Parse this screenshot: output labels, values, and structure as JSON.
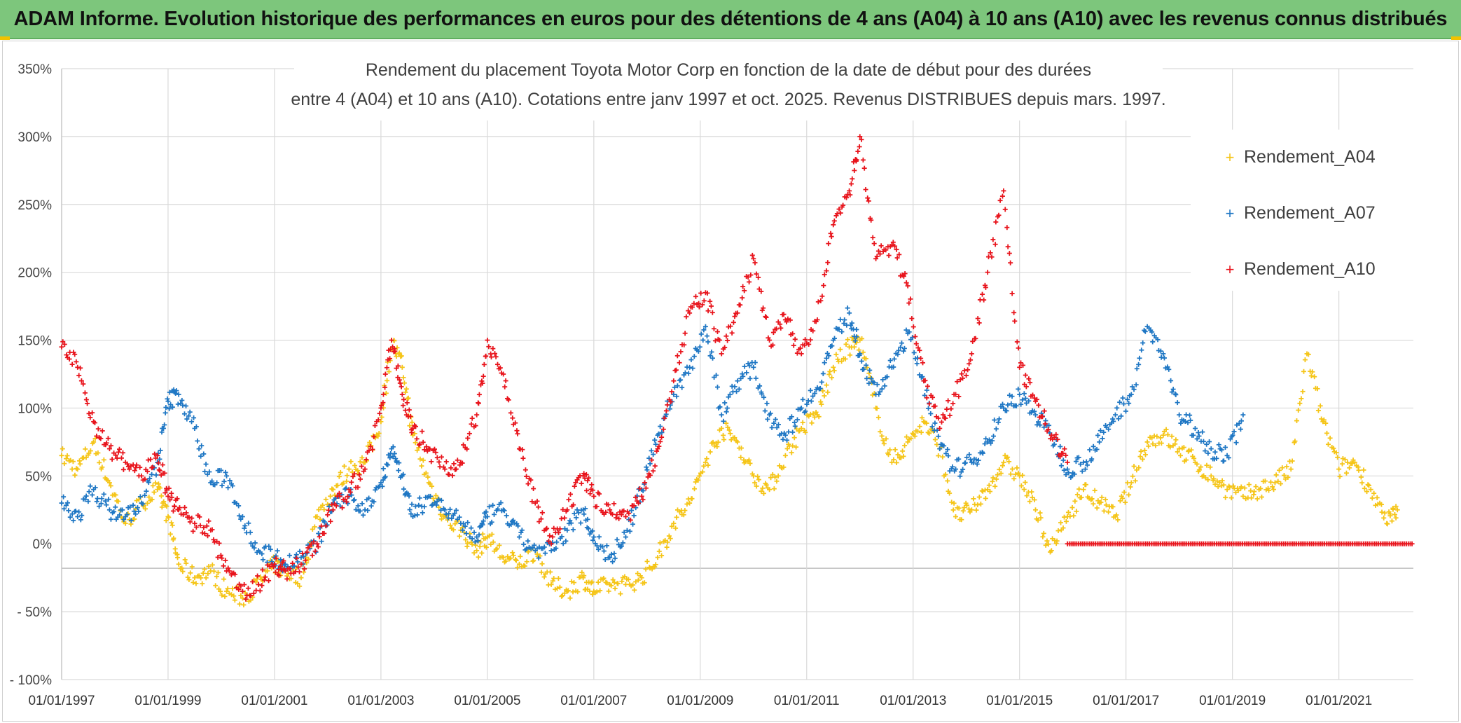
{
  "banner": {
    "text": "ADAM Informe. Evolution historique des performances en euros pour des détentions de 4 ans (A04) à 10 ans (A10) avec les revenus connus distribués"
  },
  "colors": {
    "banner_bg": "#7dc67c",
    "a04": "#f5c518",
    "a07": "#1f77c4",
    "a10": "#e8141c",
    "grid": "#d9d9d9",
    "zero_line": "#bfbfbf"
  },
  "chart_data": {
    "type": "scatter",
    "title_lines": [
      "Rendement du placement Toyota Motor Corp en fonction de la date de début pour des durées",
      "entre 4 (A04) et 10 ans (A10). Cotations entre janv 1997 et oct. 2025. Revenus DISTRIBUES depuis mars. 1997."
    ],
    "xlabel": "",
    "ylabel": "",
    "xlim": [
      1997.0,
      2022.4
    ],
    "ylim": [
      -100,
      350
    ],
    "y_ticks": [
      350,
      300,
      250,
      200,
      150,
      100,
      50,
      0,
      -50,
      -100
    ],
    "y_tick_labels": [
      "350%",
      "300%",
      "250%",
      "200%",
      "150%",
      "100%",
      "50%",
      "0%",
      "- 50%",
      "- 100%"
    ],
    "x_ticks": [
      1997,
      1999,
      2001,
      2003,
      2005,
      2007,
      2009,
      2011,
      2013,
      2015,
      2017,
      2019,
      2021
    ],
    "x_tick_labels": [
      "01/01/1997",
      "01/01/1999",
      "01/01/2001",
      "01/01/2003",
      "01/01/2005",
      "01/01/2007",
      "01/01/2009",
      "01/01/2011",
      "01/01/2013",
      "01/01/2015",
      "01/01/2017",
      "01/01/2019",
      "01/01/2021"
    ],
    "legend_position": "top-right",
    "series": [
      {
        "name": "Rendement_A04",
        "color": "#f5c518",
        "marker": "+",
        "x": [
          1997.0,
          1997.3,
          1997.6,
          1997.9,
          1998.2,
          1998.5,
          1998.8,
          1999.0,
          1999.2,
          1999.5,
          1999.8,
          2000.1,
          2000.4,
          2000.7,
          2001.0,
          2001.2,
          2001.5,
          2001.8,
          2002.1,
          2002.4,
          2002.7,
          2003.0,
          2003.2,
          2003.4,
          2003.6,
          2003.9,
          2004.2,
          2004.5,
          2004.8,
          2005.0,
          2005.3,
          2005.6,
          2005.9,
          2006.2,
          2006.5,
          2006.8,
          2007.0,
          2007.3,
          2007.6,
          2007.9,
          2008.2,
          2008.5,
          2008.8,
          2009.1,
          2009.4,
          2009.7,
          2010.0,
          2010.3,
          2010.6,
          2010.9,
          2011.2,
          2011.5,
          2011.8,
          2012.0,
          2012.3,
          2012.6,
          2012.9,
          2013.2,
          2013.5,
          2013.8,
          2014.1,
          2014.4,
          2014.7,
          2015.0,
          2015.3,
          2015.6,
          2015.9,
          2016.2,
          2016.5,
          2016.8,
          2017.1,
          2017.4,
          2017.7,
          2018.0,
          2018.3,
          2018.6,
          2018.9,
          2019.2,
          2019.5,
          2019.8,
          2020.1,
          2020.4,
          2020.7,
          2021.0,
          2021.3,
          2021.6,
          2021.9,
          2022.1
        ],
        "y": [
          65,
          55,
          75,
          45,
          15,
          30,
          40,
          20,
          -15,
          -25,
          -20,
          -35,
          -40,
          -30,
          -15,
          -20,
          -25,
          20,
          40,
          55,
          60,
          90,
          150,
          130,
          80,
          45,
          20,
          10,
          -5,
          5,
          -10,
          -15,
          -5,
          -30,
          -35,
          -25,
          -35,
          -30,
          -30,
          -25,
          -10,
          15,
          30,
          60,
          85,
          75,
          50,
          40,
          65,
          85,
          95,
          130,
          145,
          150,
          100,
          60,
          75,
          90,
          70,
          20,
          25,
          40,
          60,
          50,
          25,
          -5,
          20,
          40,
          30,
          20,
          45,
          75,
          80,
          70,
          60,
          50,
          40,
          35,
          40,
          45,
          55,
          140,
          90,
          55,
          60,
          40,
          15,
          25
        ]
      },
      {
        "name": "Rendement_A07",
        "color": "#1f77c4",
        "marker": "+",
        "x": [
          1997.0,
          1997.3,
          1997.6,
          1997.9,
          1998.2,
          1998.5,
          1998.8,
          1999.0,
          1999.2,
          1999.5,
          1999.8,
          2000.1,
          2000.4,
          2000.7,
          2001.0,
          2001.2,
          2001.5,
          2001.8,
          2002.1,
          2002.4,
          2002.7,
          2003.0,
          2003.2,
          2003.4,
          2003.6,
          2003.9,
          2004.2,
          2004.5,
          2004.8,
          2005.0,
          2005.3,
          2005.6,
          2005.9,
          2006.2,
          2006.5,
          2006.8,
          2007.0,
          2007.3,
          2007.6,
          2007.9,
          2008.2,
          2008.5,
          2008.8,
          2009.1,
          2009.4,
          2009.7,
          2010.0,
          2010.3,
          2010.6,
          2010.9,
          2011.2,
          2011.5,
          2011.8,
          2012.0,
          2012.3,
          2012.6,
          2012.9,
          2013.2,
          2013.5,
          2013.8,
          2014.1,
          2014.4,
          2014.7,
          2015.0,
          2015.3,
          2015.6,
          2015.9,
          2016.2,
          2016.5,
          2016.8,
          2017.1,
          2017.4,
          2017.7,
          2018.0,
          2018.3,
          2018.6,
          2018.9,
          2019.2
        ],
        "y": [
          30,
          20,
          40,
          25,
          20,
          30,
          60,
          105,
          110,
          85,
          45,
          50,
          20,
          -5,
          -10,
          -15,
          -10,
          0,
          30,
          35,
          25,
          45,
          70,
          50,
          20,
          35,
          25,
          15,
          5,
          20,
          25,
          5,
          -5,
          -5,
          10,
          25,
          5,
          -10,
          5,
          40,
          80,
          110,
          130,
          160,
          95,
          120,
          130,
          95,
          80,
          100,
          115,
          150,
          170,
          140,
          110,
          130,
          155,
          120,
          70,
          55,
          60,
          75,
          100,
          110,
          95,
          80,
          55,
          60,
          75,
          95,
          110,
          160,
          140,
          95,
          85,
          70,
          65,
          95
        ]
      },
      {
        "name": "Rendement_A10",
        "color": "#e8141c",
        "marker": "+",
        "x": [
          1997.0,
          1997.3,
          1997.6,
          1997.9,
          1998.2,
          1998.5,
          1998.8,
          1999.0,
          1999.2,
          1999.5,
          1999.8,
          2000.1,
          2000.4,
          2000.7,
          2001.0,
          2001.2,
          2001.5,
          2001.8,
          2002.1,
          2002.4,
          2002.7,
          2003.0,
          2003.2,
          2003.4,
          2003.6,
          2003.9,
          2004.2,
          2004.5,
          2004.8,
          2005.0,
          2005.3,
          2005.6,
          2005.9,
          2006.2,
          2006.5,
          2006.8,
          2007.0,
          2007.3,
          2007.6,
          2007.9,
          2008.2,
          2008.5,
          2008.8,
          2009.1,
          2009.4,
          2009.7,
          2010.0,
          2010.3,
          2010.6,
          2010.9,
          2011.2,
          2011.5,
          2011.8,
          2012.0,
          2012.3,
          2012.6,
          2012.9,
          2013.2,
          2013.5,
          2013.8,
          2014.1,
          2014.4,
          2014.7,
          2015.0,
          2015.3,
          2015.6,
          2015.9
        ],
        "y": [
          145,
          130,
          90,
          70,
          60,
          50,
          65,
          35,
          25,
          15,
          10,
          -20,
          -35,
          -30,
          -15,
          -20,
          -15,
          0,
          25,
          40,
          55,
          100,
          150,
          110,
          85,
          70,
          55,
          60,
          95,
          150,
          125,
          70,
          30,
          0,
          25,
          50,
          35,
          25,
          20,
          35,
          70,
          120,
          170,
          185,
          140,
          170,
          210,
          150,
          165,
          140,
          165,
          235,
          260,
          300,
          210,
          220,
          190,
          120,
          85,
          110,
          140,
          200,
          260,
          130,
          105,
          80,
          60
        ]
      }
    ],
    "extra_series_note": "",
    "a10_flat_zero_from": 2015.9,
    "a10_flat_zero_to": 2022.4
  }
}
